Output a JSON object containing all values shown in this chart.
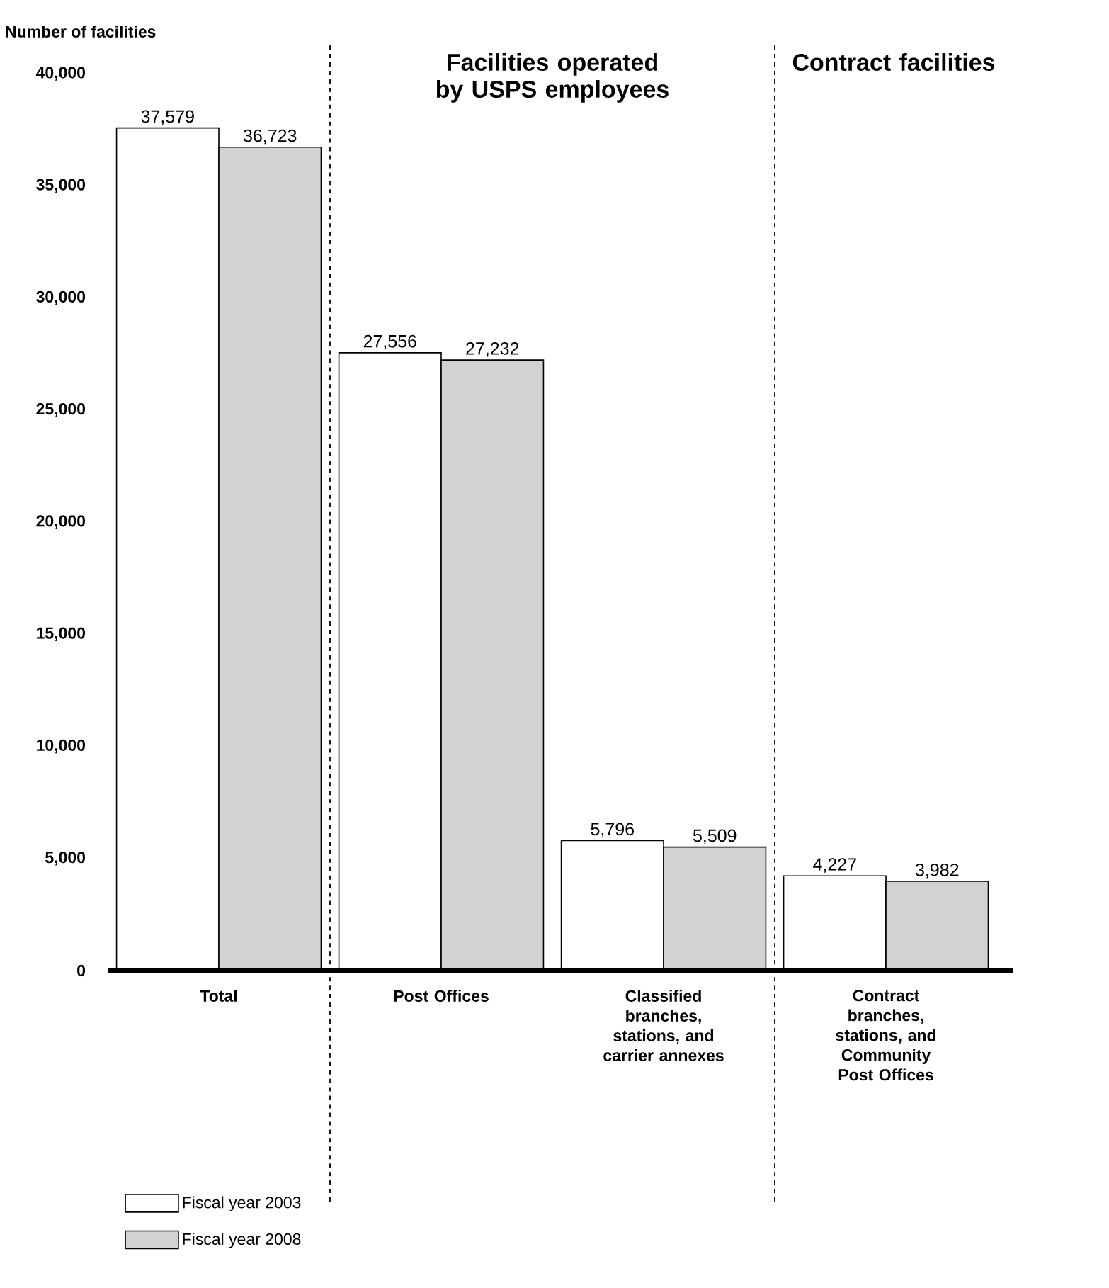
{
  "chart_data": {
    "type": "bar",
    "ylabel": "Number of facilities",
    "categories": [
      "Total",
      "Post Offices",
      "Classified branches, stations, and carrier annexes",
      "Contract branches, stations, and Community Post Offices"
    ],
    "series": [
      {
        "name": "Fiscal year 2003",
        "color": "#ffffff",
        "values": [
          37579,
          27556,
          5796,
          4227
        ],
        "value_labels": [
          "37,579",
          "27,556",
          "5,796",
          "4,227"
        ]
      },
      {
        "name": "Fiscal year 2008",
        "color": "#d2d2d2",
        "values": [
          36723,
          27232,
          5509,
          3982
        ],
        "value_labels": [
          "36,723",
          "27,232",
          "5,509",
          "3,982"
        ]
      }
    ],
    "ylim": [
      0,
      40000
    ],
    "yticks": [
      0,
      {
        "value": 5000,
        "label": "5,000"
      },
      {
        "value": 10000,
        "label": "10,000"
      },
      {
        "value": 15000,
        "label": "15,000"
      },
      {
        "value": 20000,
        "label": "20,000"
      },
      {
        "value": 25000,
        "label": "25,000"
      },
      {
        "value": 30000,
        "label": "30,000"
      },
      {
        "value": 35000,
        "label": "35,000"
      },
      {
        "value": 40000,
        "label": "40,000"
      }
    ],
    "legend": "bottom left",
    "grid": false,
    "annotations": [
      "Facilities operated by USPS employees",
      "Contract facilities"
    ]
  }
}
